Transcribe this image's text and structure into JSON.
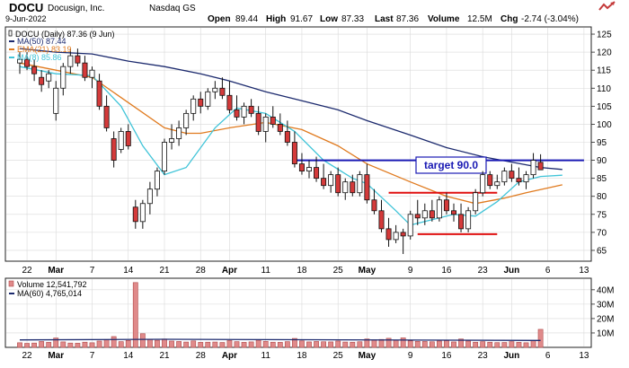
{
  "header": {
    "symbol": "DOCU",
    "company": "Docusign, Inc.",
    "exchange": "Nasdaq GS",
    "date": "9-Jun-2022",
    "open_label": "Open",
    "open": "89.44",
    "high_label": "High",
    "high": "91.67",
    "low_label": "Low",
    "low": "87.33",
    "last_label": "Last",
    "last": "87.36",
    "volume_label": "Volume",
    "volume": "12.5M",
    "chg_label": "Chg",
    "chg": "-2.74 (-3.04%)",
    "logo": "stockcharts-logo"
  },
  "colors": {
    "up_fill": "#ffffff",
    "down_fill": "#d43a3a",
    "candle_stroke": "#111111",
    "ma50": "#1c2a6e",
    "ema21": "#e07a1e",
    "ma8": "#40c4d8",
    "target": "#1a1ab4",
    "support": "#e01010",
    "volume_bar": "#e08a8a",
    "volume_stroke": "#b04a4a",
    "vol_ma": "#1c2a6e",
    "grid": "#d9d9d9"
  },
  "chart_data": [
    {
      "type": "candlestick",
      "title": "DOCU (Daily) 87.36 (9 Jun)",
      "legend": [
        {
          "name": "DOCU (Daily) 87.36 (9 Jun)",
          "icon": "candle-icon"
        },
        {
          "name": "MA(50) 87.44",
          "color": "#1c2a6e"
        },
        {
          "name": "EMA(21) 83.19",
          "color": "#e07a1e"
        },
        {
          "name": "MA(8) 85.86",
          "color": "#40c4d8"
        }
      ],
      "ylim": [
        62,
        127
      ],
      "yticks": [
        65,
        70,
        75,
        80,
        85,
        90,
        95,
        100,
        105,
        110,
        115,
        120,
        125
      ],
      "xticks": [
        {
          "label": "22",
          "index": 1
        },
        {
          "label": "Mar",
          "index": 5
        },
        {
          "label": "7",
          "index": 10
        },
        {
          "label": "14",
          "index": 15
        },
        {
          "label": "21",
          "index": 20
        },
        {
          "label": "28",
          "index": 25
        },
        {
          "label": "Apr",
          "index": 29
        },
        {
          "label": "11",
          "index": 34
        },
        {
          "label": "18",
          "index": 39
        },
        {
          "label": "25",
          "index": 44
        },
        {
          "label": "May",
          "index": 48
        },
        {
          "label": "9",
          "index": 54
        },
        {
          "label": "16",
          "index": 59
        },
        {
          "label": "23",
          "index": 64
        },
        {
          "label": "Jun",
          "index": 68
        },
        {
          "label": "6",
          "index": 73
        },
        {
          "label": "13",
          "index": 78
        }
      ],
      "candles": [
        {
          "o": 117,
          "h": 120,
          "l": 114,
          "c": 118
        },
        {
          "o": 118,
          "h": 120,
          "l": 115,
          "c": 116
        },
        {
          "o": 116,
          "h": 118,
          "l": 112,
          "c": 114
        },
        {
          "o": 113,
          "h": 115,
          "l": 109,
          "c": 111
        },
        {
          "o": 112,
          "h": 115,
          "l": 110,
          "c": 114
        },
        {
          "o": 103,
          "h": 112,
          "l": 101,
          "c": 110
        },
        {
          "o": 110,
          "h": 117,
          "l": 108,
          "c": 116
        },
        {
          "o": 116,
          "h": 121,
          "l": 114,
          "c": 119
        },
        {
          "o": 119,
          "h": 121,
          "l": 116,
          "c": 117
        },
        {
          "o": 117,
          "h": 119,
          "l": 112,
          "c": 113
        },
        {
          "o": 113,
          "h": 116,
          "l": 110,
          "c": 115
        },
        {
          "o": 112,
          "h": 114,
          "l": 104,
          "c": 105
        },
        {
          "o": 105,
          "h": 108,
          "l": 98,
          "c": 99
        },
        {
          "o": 96,
          "h": 98,
          "l": 88,
          "c": 90
        },
        {
          "o": 93,
          "h": 99,
          "l": 92,
          "c": 98
        },
        {
          "o": 98,
          "h": 100,
          "l": 93,
          "c": 94
        },
        {
          "o": 77,
          "h": 79,
          "l": 71,
          "c": 73
        },
        {
          "o": 73,
          "h": 79,
          "l": 71,
          "c": 78
        },
        {
          "o": 78,
          "h": 84,
          "l": 75,
          "c": 82
        },
        {
          "o": 82,
          "h": 88,
          "l": 80,
          "c": 87
        },
        {
          "o": 87,
          "h": 96,
          "l": 86,
          "c": 95
        },
        {
          "o": 95,
          "h": 100,
          "l": 93,
          "c": 96
        },
        {
          "o": 96,
          "h": 101,
          "l": 94,
          "c": 99
        },
        {
          "o": 99,
          "h": 104,
          "l": 97,
          "c": 103
        },
        {
          "o": 103,
          "h": 108,
          "l": 101,
          "c": 107
        },
        {
          "o": 107,
          "h": 109,
          "l": 103,
          "c": 105
        },
        {
          "o": 105,
          "h": 110,
          "l": 104,
          "c": 109
        },
        {
          "o": 109,
          "h": 112,
          "l": 107,
          "c": 110
        },
        {
          "o": 110,
          "h": 113,
          "l": 107,
          "c": 108
        },
        {
          "o": 108,
          "h": 112,
          "l": 103,
          "c": 104
        },
        {
          "o": 104,
          "h": 108,
          "l": 101,
          "c": 102
        },
        {
          "o": 102,
          "h": 106,
          "l": 100,
          "c": 105
        },
        {
          "o": 105,
          "h": 107,
          "l": 102,
          "c": 103
        },
        {
          "o": 103,
          "h": 105,
          "l": 97,
          "c": 98
        },
        {
          "o": 98,
          "h": 103,
          "l": 95,
          "c": 102
        },
        {
          "o": 102,
          "h": 105,
          "l": 99,
          "c": 100
        },
        {
          "o": 100,
          "h": 103,
          "l": 97,
          "c": 98
        },
        {
          "o": 98,
          "h": 101,
          "l": 94,
          "c": 95
        },
        {
          "o": 95,
          "h": 98,
          "l": 88,
          "c": 89
        },
        {
          "o": 89,
          "h": 92,
          "l": 86,
          "c": 87
        },
        {
          "o": 87,
          "h": 90,
          "l": 85,
          "c": 88
        },
        {
          "o": 88,
          "h": 91,
          "l": 84,
          "c": 85
        },
        {
          "o": 85,
          "h": 89,
          "l": 82,
          "c": 83
        },
        {
          "o": 83,
          "h": 87,
          "l": 81,
          "c": 86
        },
        {
          "o": 86,
          "h": 88,
          "l": 80,
          "c": 81
        },
        {
          "o": 81,
          "h": 85,
          "l": 79,
          "c": 84
        },
        {
          "o": 84,
          "h": 86,
          "l": 80,
          "c": 81
        },
        {
          "o": 81,
          "h": 87,
          "l": 80,
          "c": 86
        },
        {
          "o": 86,
          "h": 89,
          "l": 78,
          "c": 79
        },
        {
          "o": 79,
          "h": 82,
          "l": 75,
          "c": 76
        },
        {
          "o": 76,
          "h": 79,
          "l": 70,
          "c": 71
        },
        {
          "o": 71,
          "h": 74,
          "l": 66,
          "c": 68
        },
        {
          "o": 68,
          "h": 72,
          "l": 67,
          "c": 70
        },
        {
          "o": 70,
          "h": 71,
          "l": 64,
          "c": 69
        },
        {
          "o": 69,
          "h": 76,
          "l": 68,
          "c": 75
        },
        {
          "o": 75,
          "h": 79,
          "l": 72,
          "c": 74
        },
        {
          "o": 74,
          "h": 78,
          "l": 72,
          "c": 76
        },
        {
          "o": 76,
          "h": 79,
          "l": 73,
          "c": 74
        },
        {
          "o": 74,
          "h": 80,
          "l": 73,
          "c": 79
        },
        {
          "o": 79,
          "h": 81,
          "l": 75,
          "c": 76
        },
        {
          "o": 76,
          "h": 78,
          "l": 73,
          "c": 75
        },
        {
          "o": 75,
          "h": 78,
          "l": 70,
          "c": 71
        },
        {
          "o": 71,
          "h": 77,
          "l": 70,
          "c": 76
        },
        {
          "o": 76,
          "h": 82,
          "l": 75,
          "c": 81
        },
        {
          "o": 81,
          "h": 87,
          "l": 80,
          "c": 86
        },
        {
          "o": 86,
          "h": 87,
          "l": 82,
          "c": 83
        },
        {
          "o": 83,
          "h": 86,
          "l": 82,
          "c": 84
        },
        {
          "o": 84,
          "h": 88,
          "l": 83,
          "c": 87
        },
        {
          "o": 87,
          "h": 89,
          "l": 84,
          "c": 85
        },
        {
          "o": 85,
          "h": 88,
          "l": 83,
          "c": 84
        },
        {
          "o": 84,
          "h": 87,
          "l": 82,
          "c": 86
        },
        {
          "o": 86,
          "h": 92,
          "l": 85,
          "c": 90
        },
        {
          "o": 89.44,
          "h": 91.67,
          "l": 87.33,
          "c": 87.36
        }
      ],
      "ma50": [
        [
          0,
          121
        ],
        [
          5,
          120
        ],
        [
          10,
          119.5
        ],
        [
          15,
          117.5
        ],
        [
          20,
          116
        ],
        [
          25,
          114
        ],
        [
          29,
          112
        ],
        [
          34,
          109
        ],
        [
          39,
          106.5
        ],
        [
          44,
          104
        ],
        [
          48,
          101
        ],
        [
          54,
          97
        ],
        [
          59,
          93.5
        ],
        [
          64,
          91
        ],
        [
          68,
          89.5
        ],
        [
          72,
          88
        ],
        [
          75,
          87.44
        ]
      ],
      "ema21": [
        [
          0,
          117
        ],
        [
          5,
          115
        ],
        [
          10,
          113
        ],
        [
          15,
          106
        ],
        [
          20,
          99
        ],
        [
          23,
          97.5
        ],
        [
          25,
          97.5
        ],
        [
          29,
          99
        ],
        [
          34,
          100.5
        ],
        [
          39,
          98.5
        ],
        [
          44,
          94
        ],
        [
          48,
          89
        ],
        [
          54,
          84
        ],
        [
          59,
          80
        ],
        [
          63,
          78
        ],
        [
          67,
          79.5
        ],
        [
          70,
          81
        ],
        [
          75,
          83.19
        ]
      ],
      "ma8": [
        [
          0,
          116
        ],
        [
          5,
          114
        ],
        [
          10,
          113.5
        ],
        [
          14,
          105
        ],
        [
          17,
          94
        ],
        [
          20,
          86
        ],
        [
          23,
          88
        ],
        [
          27,
          99
        ],
        [
          30,
          104.5
        ],
        [
          34,
          103
        ],
        [
          38,
          98
        ],
        [
          42,
          90
        ],
        [
          46,
          85
        ],
        [
          48,
          83.5
        ],
        [
          52,
          76
        ],
        [
          54,
          72
        ],
        [
          57,
          73.5
        ],
        [
          60,
          75
        ],
        [
          63,
          74.5
        ],
        [
          66,
          78.5
        ],
        [
          69,
          84
        ],
        [
          72,
          85.5
        ],
        [
          75,
          85.86
        ]
      ],
      "annotations": {
        "target_line": {
          "y": 90,
          "x_start": 38,
          "x_end": 78
        },
        "target_label": "target 90.0",
        "support_lines": [
          {
            "y": 81,
            "x_start": 51,
            "x_end": 66
          },
          {
            "y": 69.5,
            "x_start": 55,
            "x_end": 66
          }
        ]
      }
    },
    {
      "type": "bar",
      "title": "Volume 12,541,792",
      "legend": [
        {
          "name": "Volume 12,541,792",
          "color": "#e08a8a"
        },
        {
          "name": "MA(60) 4,765,014",
          "color": "#1c2a6e"
        }
      ],
      "ylim": [
        0,
        48
      ],
      "yticks_labels": [
        "10M",
        "20M",
        "30M",
        "40M"
      ],
      "yticks": [
        10,
        20,
        30,
        40
      ],
      "values": [
        3.2,
        2.8,
        3.0,
        4.1,
        3.5,
        6.5,
        3.8,
        3.0,
        2.9,
        3.6,
        3.2,
        4.4,
        5.2,
        7.5,
        4.0,
        4.8,
        45,
        9.5,
        5.5,
        4.9,
        5.8,
        4.4,
        4.1,
        3.7,
        4.5,
        3.5,
        3.6,
        3.7,
        3.4,
        4.7,
        4.0,
        3.5,
        3.8,
        5.0,
        4.2,
        3.6,
        3.5,
        4.0,
        6.2,
        4.5,
        3.8,
        4.1,
        3.9,
        3.8,
        4.4,
        3.7,
        3.6,
        3.9,
        5.8,
        5.2,
        5.5,
        6.3,
        4.9,
        6.6,
        4.5,
        4.2,
        4.1,
        3.9,
        4.4,
        4.7,
        3.8,
        5.8,
        4.4,
        3.6,
        4.0,
        3.6,
        3.3,
        3.4,
        4.0,
        3.5,
        3.2,
        4.7,
        12.5
      ],
      "ma60": [
        [
          0,
          5.2
        ],
        [
          20,
          5.6
        ],
        [
          40,
          5.3
        ],
        [
          60,
          5.0
        ],
        [
          72,
          4.77
        ]
      ]
    }
  ]
}
